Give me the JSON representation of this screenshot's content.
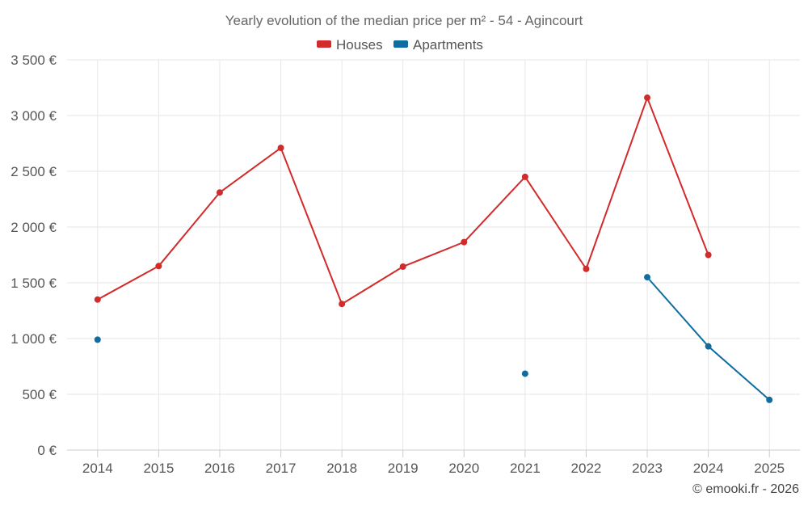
{
  "chart_data": {
    "type": "line",
    "title": "Yearly evolution of the median price per m² - 54 - Agincourt",
    "categories": [
      "2014",
      "2015",
      "2016",
      "2017",
      "2018",
      "2019",
      "2020",
      "2021",
      "2022",
      "2023",
      "2024",
      "2025"
    ],
    "series": [
      {
        "name": "Houses",
        "color": "#d12b2b",
        "values": [
          1350,
          1650,
          2310,
          2710,
          1310,
          1645,
          1865,
          2450,
          1625,
          3160,
          1750,
          null
        ]
      },
      {
        "name": "Apartments",
        "color": "#0f6e9f",
        "values": [
          990,
          null,
          null,
          null,
          null,
          null,
          null,
          685,
          null,
          1550,
          930,
          450
        ]
      }
    ],
    "ylim": [
      0,
      3500
    ],
    "yticks": [
      0,
      500,
      1000,
      1500,
      2000,
      2500,
      3000,
      3500
    ],
    "ytick_labels": [
      "0 €",
      "500 €",
      "1 000 €",
      "1 500 €",
      "2 000 €",
      "2 500 €",
      "3 000 €",
      "3 500 €"
    ],
    "grid": true,
    "legend_position": "top-center",
    "xlabel": "",
    "ylabel": ""
  },
  "credit": "© emooki.fr - 2026"
}
